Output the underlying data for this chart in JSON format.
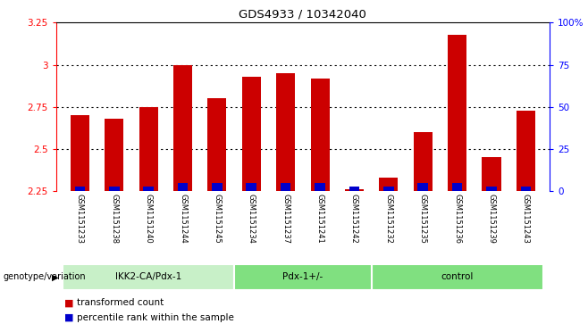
{
  "title": "GDS4933 / 10342040",
  "samples": [
    "GSM1151233",
    "GSM1151238",
    "GSM1151240",
    "GSM1151244",
    "GSM1151245",
    "GSM1151234",
    "GSM1151237",
    "GSM1151241",
    "GSM1151242",
    "GSM1151232",
    "GSM1151235",
    "GSM1151236",
    "GSM1151239",
    "GSM1151243"
  ],
  "transformed_count": [
    2.7,
    2.68,
    2.75,
    3.0,
    2.8,
    2.93,
    2.95,
    2.92,
    2.26,
    2.33,
    2.6,
    3.18,
    2.45,
    2.73
  ],
  "percentile_rank": [
    3,
    3,
    3,
    5,
    5,
    5,
    5,
    5,
    3,
    3,
    5,
    5,
    3,
    3
  ],
  "groups": [
    {
      "label": "IKK2-CA/Pdx-1",
      "start": 0,
      "end": 4,
      "color": "#c8f0c8"
    },
    {
      "label": "Pdx-1+/-",
      "start": 5,
      "end": 8,
      "color": "#80e080"
    },
    {
      "label": "control",
      "start": 9,
      "end": 13,
      "color": "#80e080"
    }
  ],
  "ylim": [
    2.25,
    3.25
  ],
  "yticks": [
    2.25,
    2.5,
    2.75,
    3.0,
    3.25
  ],
  "ytick_labels": [
    "2.25",
    "2.5",
    "2.75",
    "3",
    "3.25"
  ],
  "y2ticks": [
    0,
    25,
    50,
    75,
    100
  ],
  "y2lim": [
    0,
    100
  ],
  "bar_color": "#cc0000",
  "percentile_color": "#0000cc",
  "bar_width": 0.55,
  "bg_color": "#cccccc",
  "plot_bg": "#ffffff",
  "group_label": "genotype/variation",
  "legend_items": [
    {
      "label": "transformed count",
      "color": "#cc0000"
    },
    {
      "label": "percentile rank within the sample",
      "color": "#0000cc"
    }
  ]
}
